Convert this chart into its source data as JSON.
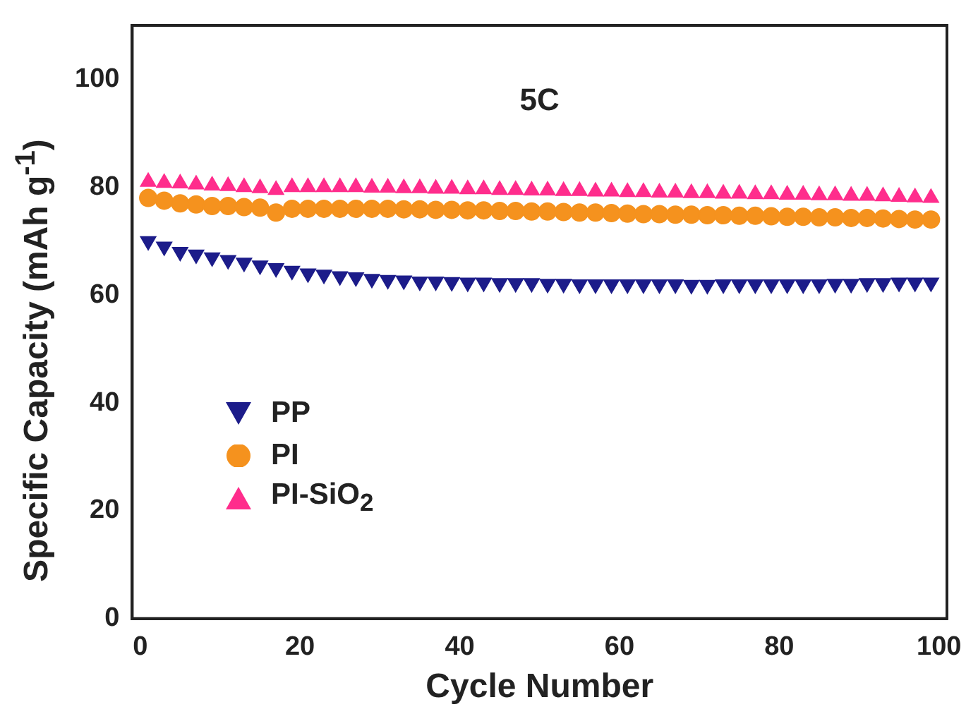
{
  "chart_data": {
    "type": "scatter",
    "xlabel": "Cycle Number",
    "ylabel": "Specific Capacity (mAh g$^{-1}$)",
    "annotations": [
      "5C"
    ],
    "xlim": [
      -1,
      101
    ],
    "xticks": [
      0,
      20,
      40,
      60,
      80,
      100
    ],
    "ylim": [
      0,
      110
    ],
    "yticks": [
      0,
      20,
      40,
      60,
      80,
      100
    ],
    "grid": false,
    "legend": "left",
    "x": [
      1,
      3,
      5,
      7,
      9,
      11,
      13,
      15,
      17,
      19,
      21,
      23,
      25,
      27,
      29,
      31,
      33,
      35,
      37,
      39,
      41,
      43,
      45,
      47,
      49,
      51,
      53,
      55,
      57,
      59,
      61,
      63,
      65,
      67,
      69,
      71,
      73,
      75,
      77,
      79,
      81,
      83,
      85,
      87,
      89,
      91,
      93,
      95,
      97,
      99
    ],
    "series": [
      {
        "name": "PP",
        "color": "#1c1c8a",
        "marker": "triangle_down",
        "values": [
          70,
          69,
          68,
          67.5,
          67,
          66.5,
          66,
          65.5,
          65,
          64.5,
          64,
          63.8,
          63.5,
          63.3,
          63,
          62.8,
          62.7,
          62.5,
          62.5,
          62.4,
          62.3,
          62.3,
          62.2,
          62.2,
          62.2,
          62.1,
          62.1,
          62,
          62,
          62,
          62,
          62,
          62,
          62,
          61.9,
          61.9,
          62,
          62,
          62,
          62,
          62,
          62,
          62,
          62.1,
          62.1,
          62.2,
          62.2,
          62.3,
          62.3,
          62.3
        ]
      },
      {
        "name": "PI",
        "color": "#f5921e",
        "marker": "circle",
        "values": [
          78,
          77.5,
          77,
          76.8,
          76.5,
          76.5,
          76.3,
          76.2,
          75.3,
          76,
          76,
          76,
          76,
          76,
          76,
          76,
          75.9,
          75.9,
          75.8,
          75.8,
          75.7,
          75.7,
          75.6,
          75.6,
          75.5,
          75.5,
          75.4,
          75.3,
          75.3,
          75.2,
          75.1,
          75,
          75,
          74.9,
          74.9,
          74.8,
          74.8,
          74.7,
          74.7,
          74.6,
          74.5,
          74.5,
          74.4,
          74.4,
          74.3,
          74.3,
          74.2,
          74.1,
          74,
          74
        ]
      },
      {
        "name": "PI-SiO$_{2}$",
        "color": "#ff2d8c",
        "marker": "triangle",
        "values": [
          81,
          80.8,
          80.7,
          80.5,
          80.3,
          80.2,
          80,
          79.8,
          79.5,
          80,
          80,
          80,
          80,
          80,
          79.9,
          79.9,
          79.8,
          79.8,
          79.7,
          79.7,
          79.6,
          79.6,
          79.5,
          79.5,
          79.4,
          79.4,
          79.3,
          79.3,
          79.2,
          79.2,
          79.1,
          79.1,
          79,
          79,
          78.9,
          78.9,
          78.8,
          78.8,
          78.7,
          78.7,
          78.6,
          78.6,
          78.5,
          78.5,
          78.4,
          78.4,
          78.3,
          78.2,
          78.1,
          78
        ]
      }
    ]
  }
}
